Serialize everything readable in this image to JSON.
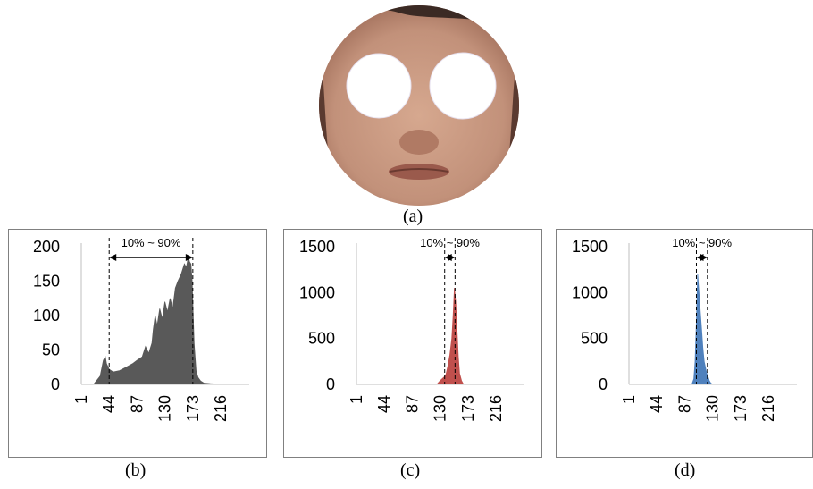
{
  "captions": {
    "a": "(a)",
    "b": "(b)",
    "c": "(c)",
    "d": "(d)"
  },
  "colors": {
    "gray": "#595959",
    "red": "#c0504d",
    "blue": "#4f81bd",
    "skin": "#c89a82"
  },
  "chart_data": [
    {
      "type": "area",
      "panel": "b",
      "color": "#595959",
      "annotation": "10% ~ 90%",
      "band": [
        44,
        173
      ],
      "x_ticks": [
        "1",
        "44",
        "87",
        "130",
        "173",
        "216"
      ],
      "y_ticks": [
        "0",
        "50",
        "100",
        "150",
        "200"
      ],
      "ylim": [
        0,
        200
      ],
      "xlim": [
        1,
        260
      ],
      "x": [
        1,
        20,
        30,
        35,
        38,
        40,
        44,
        50,
        60,
        70,
        80,
        87,
        95,
        100,
        105,
        110,
        112,
        115,
        118,
        122,
        126,
        130,
        134,
        138,
        142,
        146,
        150,
        155,
        160,
        163,
        166,
        168,
        170,
        172,
        173,
        175,
        178,
        181,
        185,
        190,
        200,
        216,
        260
      ],
      "y": [
        0,
        0,
        12,
        35,
        40,
        30,
        22,
        18,
        20,
        25,
        30,
        35,
        40,
        55,
        45,
        60,
        80,
        100,
        85,
        110,
        95,
        120,
        105,
        125,
        110,
        140,
        150,
        160,
        175,
        170,
        185,
        178,
        175,
        150,
        120,
        60,
        20,
        10,
        5,
        2,
        1,
        0,
        0
      ]
    },
    {
      "type": "area",
      "panel": "c",
      "color": "#c0504d",
      "annotation": "10% ~ 90%",
      "band": [
        137,
        153
      ],
      "x_ticks": [
        "1",
        "44",
        "87",
        "130",
        "173",
        "216"
      ],
      "y_ticks": [
        "0",
        "500",
        "1000",
        "1500"
      ],
      "ylim": [
        0,
        1500
      ],
      "xlim": [
        1,
        260
      ],
      "x": [
        1,
        125,
        130,
        133,
        136,
        139,
        142,
        145,
        148,
        150,
        152,
        154,
        156,
        158,
        160,
        163,
        166,
        260
      ],
      "y": [
        0,
        0,
        40,
        60,
        80,
        110,
        200,
        320,
        500,
        750,
        1050,
        900,
        600,
        300,
        120,
        40,
        0,
        0
      ]
    },
    {
      "type": "area",
      "panel": "d",
      "color": "#4f81bd",
      "annotation": "10% ~ 90%",
      "band": [
        105,
        122
      ],
      "x_ticks": [
        "1",
        "44",
        "87",
        "130",
        "173",
        "216"
      ],
      "y_ticks": [
        "0",
        "500",
        "1000",
        "1500"
      ],
      "ylim": [
        0,
        1500
      ],
      "xlim": [
        1,
        260
      ],
      "x": [
        1,
        98,
        101,
        103,
        105,
        107,
        109,
        111,
        113,
        115,
        117,
        119,
        121,
        123,
        125,
        127,
        130,
        260
      ],
      "y": [
        0,
        0,
        60,
        250,
        700,
        1200,
        1000,
        800,
        600,
        400,
        250,
        180,
        120,
        80,
        40,
        15,
        0,
        0
      ]
    }
  ]
}
